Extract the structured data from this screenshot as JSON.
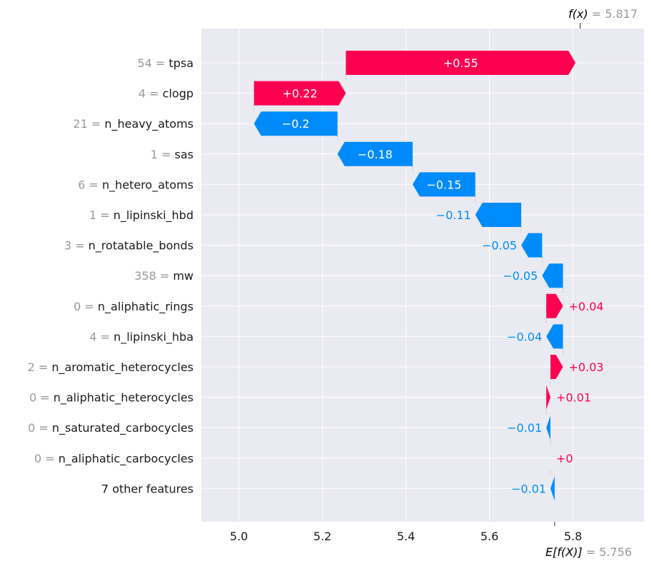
{
  "chart_data": {
    "type": "waterfall",
    "base_value": 5.756,
    "final_value": 5.817,
    "fx_label": "f(x)",
    "fx_value_text": "5.817",
    "efx_label": "E[f(X)]",
    "efx_value_text": "5.756",
    "xlim": [
      4.91,
      5.97
    ],
    "x_ticks": [
      5.0,
      5.2,
      5.4,
      5.6,
      5.8
    ],
    "x_tick_labels": [
      "5.0",
      "5.2",
      "5.4",
      "5.6",
      "5.8"
    ],
    "grid": true,
    "colors": {
      "positive": "#ff0051",
      "negative": "#008bfb",
      "background": "#eaeaf2",
      "muted": "#999999"
    },
    "features": [
      {
        "value": "54",
        "name": "tpsa",
        "contribution": 0.55,
        "label": "+0.55"
      },
      {
        "value": "4",
        "name": "clogp",
        "contribution": 0.22,
        "label": "+0.22"
      },
      {
        "value": "21",
        "name": "n_heavy_atoms",
        "contribution": -0.2,
        "label": "−0.2"
      },
      {
        "value": "1",
        "name": "sas",
        "contribution": -0.18,
        "label": "−0.18"
      },
      {
        "value": "6",
        "name": "n_hetero_atoms",
        "contribution": -0.15,
        "label": "−0.15"
      },
      {
        "value": "1",
        "name": "n_lipinski_hbd",
        "contribution": -0.11,
        "label": "−0.11"
      },
      {
        "value": "3",
        "name": "n_rotatable_bonds",
        "contribution": -0.05,
        "label": "−0.05"
      },
      {
        "value": "358",
        "name": "mw",
        "contribution": -0.05,
        "label": "−0.05"
      },
      {
        "value": "0",
        "name": "n_aliphatic_rings",
        "contribution": 0.04,
        "label": "+0.04"
      },
      {
        "value": "4",
        "name": "n_lipinski_hba",
        "contribution": -0.04,
        "label": "−0.04"
      },
      {
        "value": "2",
        "name": "n_aromatic_heterocycles",
        "contribution": 0.03,
        "label": "+0.03"
      },
      {
        "value": "0",
        "name": "n_aliphatic_heterocycles",
        "contribution": 0.01,
        "label": "+0.01"
      },
      {
        "value": "0",
        "name": "n_saturated_carbocycles",
        "contribution": -0.01,
        "label": "−0.01"
      },
      {
        "value": "0",
        "name": "n_aliphatic_carbocycles",
        "contribution": 0.0,
        "label": "+0"
      },
      {
        "value": "",
        "name": "7 other features",
        "contribution": -0.01,
        "label": "−0.01"
      }
    ]
  }
}
